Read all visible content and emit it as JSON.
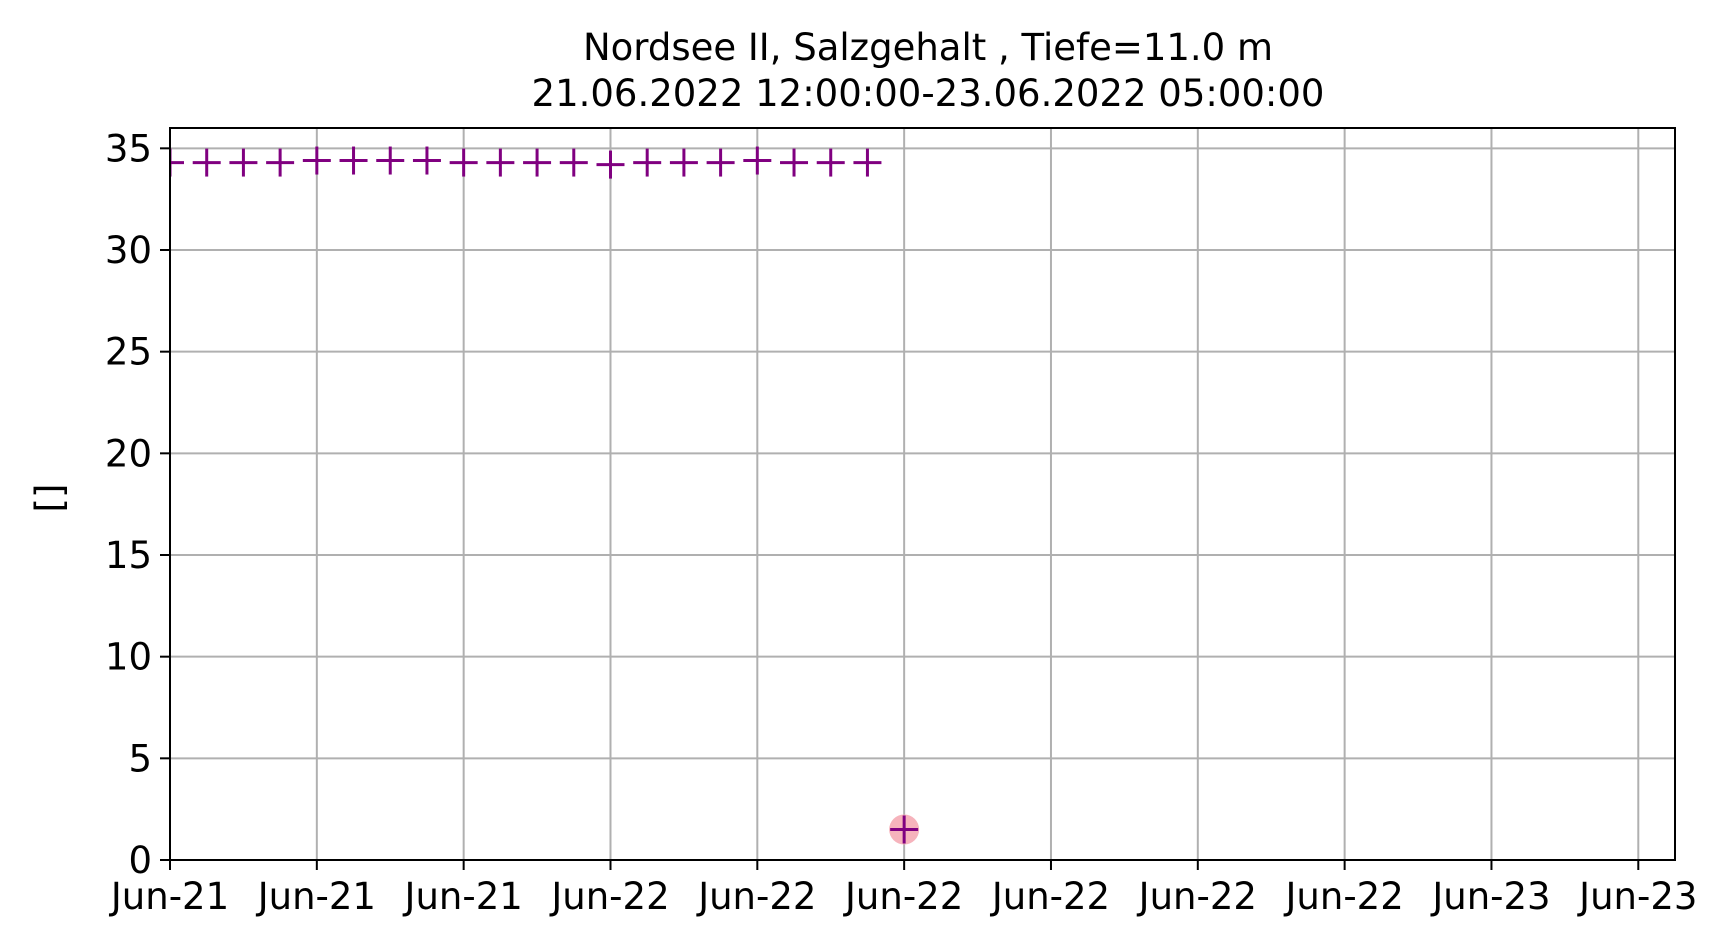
{
  "chart_data": {
    "type": "scatter",
    "title": "Nordsee II, Salzgehalt , Tiefe=11.0 m",
    "subtitle": "21.06.2022 12:00:00-23.06.2022 05:00:00",
    "xlabel": "",
    "ylabel": "[]",
    "xlim": [
      "2022-06-21 12:00",
      "2022-06-23 05:00"
    ],
    "ylim": [
      0,
      36
    ],
    "grid": true,
    "x_ticks": [
      "2022-06-21 12:00",
      "2022-06-21 16:00",
      "2022-06-21 20:00",
      "2022-06-22 00:00",
      "2022-06-22 04:00",
      "2022-06-22 08:00",
      "2022-06-22 12:00",
      "2022-06-22 16:00",
      "2022-06-22 20:00",
      "2022-06-23 00:00",
      "2022-06-23 04:00"
    ],
    "x_tick_labels": [
      "Jun-21",
      "Jun-21",
      "Jun-21",
      "Jun-22",
      "Jun-22",
      "Jun-22",
      "Jun-22",
      "Jun-22",
      "Jun-22",
      "Jun-23",
      "Jun-23"
    ],
    "y_ticks": [
      0,
      5,
      10,
      15,
      20,
      25,
      30,
      35
    ],
    "y_tick_labels": [
      "0",
      "5",
      "10",
      "15",
      "20",
      "25",
      "30",
      "35"
    ],
    "series": [
      {
        "marker": "plus",
        "color": "#800080",
        "points": [
          {
            "x": "2022-06-21 12:00",
            "y": 34.3
          },
          {
            "x": "2022-06-21 13:00",
            "y": 34.3
          },
          {
            "x": "2022-06-21 14:00",
            "y": 34.3
          },
          {
            "x": "2022-06-21 15:00",
            "y": 34.3
          },
          {
            "x": "2022-06-21 16:00",
            "y": 34.4
          },
          {
            "x": "2022-06-21 17:00",
            "y": 34.4
          },
          {
            "x": "2022-06-21 18:00",
            "y": 34.4
          },
          {
            "x": "2022-06-21 19:00",
            "y": 34.4
          },
          {
            "x": "2022-06-21 20:00",
            "y": 34.3
          },
          {
            "x": "2022-06-21 21:00",
            "y": 34.3
          },
          {
            "x": "2022-06-21 22:00",
            "y": 34.3
          },
          {
            "x": "2022-06-21 23:00",
            "y": 34.3
          },
          {
            "x": "2022-06-22 00:00",
            "y": 34.2
          },
          {
            "x": "2022-06-22 01:00",
            "y": 34.3
          },
          {
            "x": "2022-06-22 02:00",
            "y": 34.3
          },
          {
            "x": "2022-06-22 03:00",
            "y": 34.3
          },
          {
            "x": "2022-06-22 04:00",
            "y": 34.4
          },
          {
            "x": "2022-06-22 05:00",
            "y": 34.3
          },
          {
            "x": "2022-06-22 06:00",
            "y": 34.3
          },
          {
            "x": "2022-06-22 07:00",
            "y": 34.3
          },
          {
            "x": "2022-06-22 08:00",
            "y": 1.5,
            "highlight": "#f4a6b0"
          }
        ]
      }
    ]
  }
}
